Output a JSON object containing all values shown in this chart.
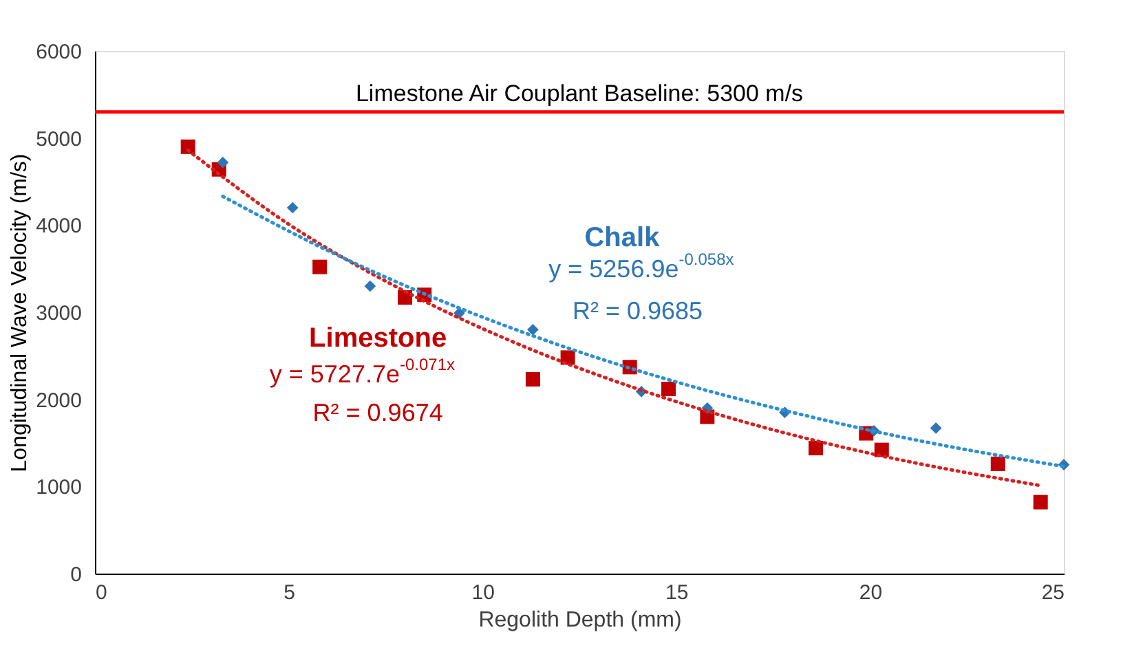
{
  "chart_data": {
    "type": "scatter",
    "xlabel": "Regolith Depth (mm)",
    "ylabel": "Longitudinal Wave Velocity (m/s)",
    "xlim": [
      0,
      25
    ],
    "xticks": [
      0,
      5,
      10,
      15,
      20,
      25
    ],
    "ylim": [
      0,
      6000
    ],
    "yticks": [
      0,
      1000,
      2000,
      3000,
      4000,
      5000,
      6000
    ],
    "grid": false,
    "series": [
      {
        "name": "Limestone",
        "marker": "square",
        "color": "#c00000",
        "x": [
          2.4,
          3.2,
          5.8,
          8.0,
          8.5,
          11.3,
          12.2,
          13.8,
          14.8,
          15.8,
          18.6,
          19.9,
          20.3,
          23.3,
          24.4
        ],
        "values": [
          4900,
          4640,
          3520,
          3170,
          3200,
          2230,
          2480,
          2370,
          2120,
          1800,
          1440,
          1610,
          1420,
          1260,
          820
        ]
      },
      {
        "name": "Chalk",
        "marker": "diamond",
        "color": "#2e75b6",
        "x": [
          3.3,
          5.1,
          7.1,
          9.4,
          11.3,
          14.1,
          15.8,
          17.8,
          20.1,
          21.7,
          25.0
        ],
        "values": [
          4720,
          4200,
          3300,
          2990,
          2800,
          2090,
          1900,
          1850,
          1640,
          1670,
          1250
        ]
      },
      {
        "type": "line",
        "line_style": "dotted",
        "color": "#d62020",
        "x": [
          2.4,
          5,
          8,
          11,
          14,
          17,
          20,
          24.4
        ],
        "values": [
          4860,
          4010,
          3240,
          2620,
          2120,
          1710,
          1380,
          1010
        ]
      },
      {
        "type": "line",
        "line_style": "dotted",
        "color": "#2e90d0",
        "x": [
          3.3,
          6,
          9,
          12,
          15,
          18,
          21,
          25
        ],
        "values": [
          4330,
          3710,
          3120,
          2620,
          2200,
          1850,
          1550,
          1230
        ]
      }
    ],
    "ref_lines": [
      {
        "axis": "y",
        "value": 5300,
        "label": "Limestone Air Couplant Baseline: 5300 m/s",
        "color": "#ff0000"
      }
    ],
    "annotations": [
      "y = 5256.9e$^{-0.058x}$",
      "R² = 0.9685",
      "y = 5727.7e$^{-0.071x}$",
      "R² = 0.9674"
    ]
  }
}
